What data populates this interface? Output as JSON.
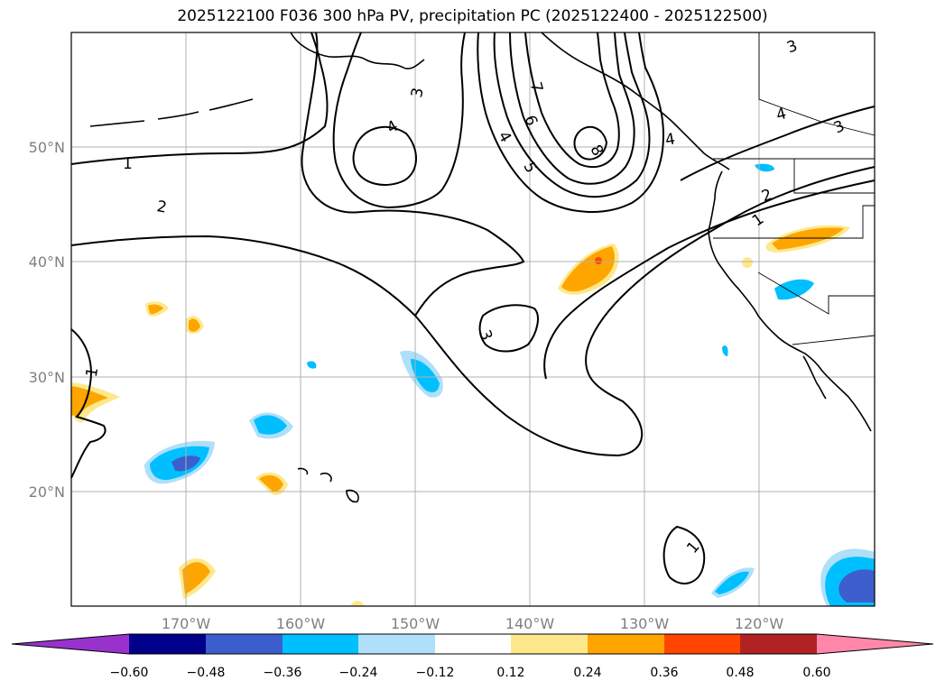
{
  "title": "2025122100 F036 300 hPa PV, precipitation PC (2025122400 - 2025122500)",
  "latitude_labels": [
    "50°N",
    "40°N",
    "30°N",
    "20°N"
  ],
  "longitude_labels": [
    "170°W",
    "160°W",
    "150°W",
    "140°W",
    "130°W",
    "120°W"
  ],
  "colorbar": {
    "tick_labels": [
      "−0.60",
      "−0.48",
      "−0.36",
      "−0.24",
      "−0.12",
      "0.12",
      "0.24",
      "0.36",
      "0.48",
      "0.60"
    ],
    "colors": [
      "#9932cc",
      "#00008b",
      "#3c5fcd",
      "#00bfff",
      "#aee0fa",
      "#ffffff",
      "#fde98c",
      "#ffa500",
      "#ff4500",
      "#b22222",
      "#ff88aa"
    ]
  },
  "contour_labels": {
    "c1_west": "1",
    "c1_left": "1",
    "c1_east": "1",
    "c1_south": "1",
    "c2_left": "2",
    "c2_east": "2",
    "c3_north": "3",
    "c3_low": "3",
    "c3_ne": "3",
    "c3_top": "3",
    "c4_left": "4",
    "c4_right": "4",
    "c4_ne": "4",
    "c4_bc": "4",
    "c5": "5",
    "c6": "6",
    "c7": "7",
    "c8": "8"
  },
  "colors": {
    "blue_light": "#aee0fa",
    "blue_mid": "#00bfff",
    "blue_dark": "#3c5fcd",
    "yellow": "#fde98c",
    "orange": "#ffa500",
    "red": "#ff4500",
    "grid": "#b0b0b0",
    "axis_text": "#7f7f7f"
  }
}
